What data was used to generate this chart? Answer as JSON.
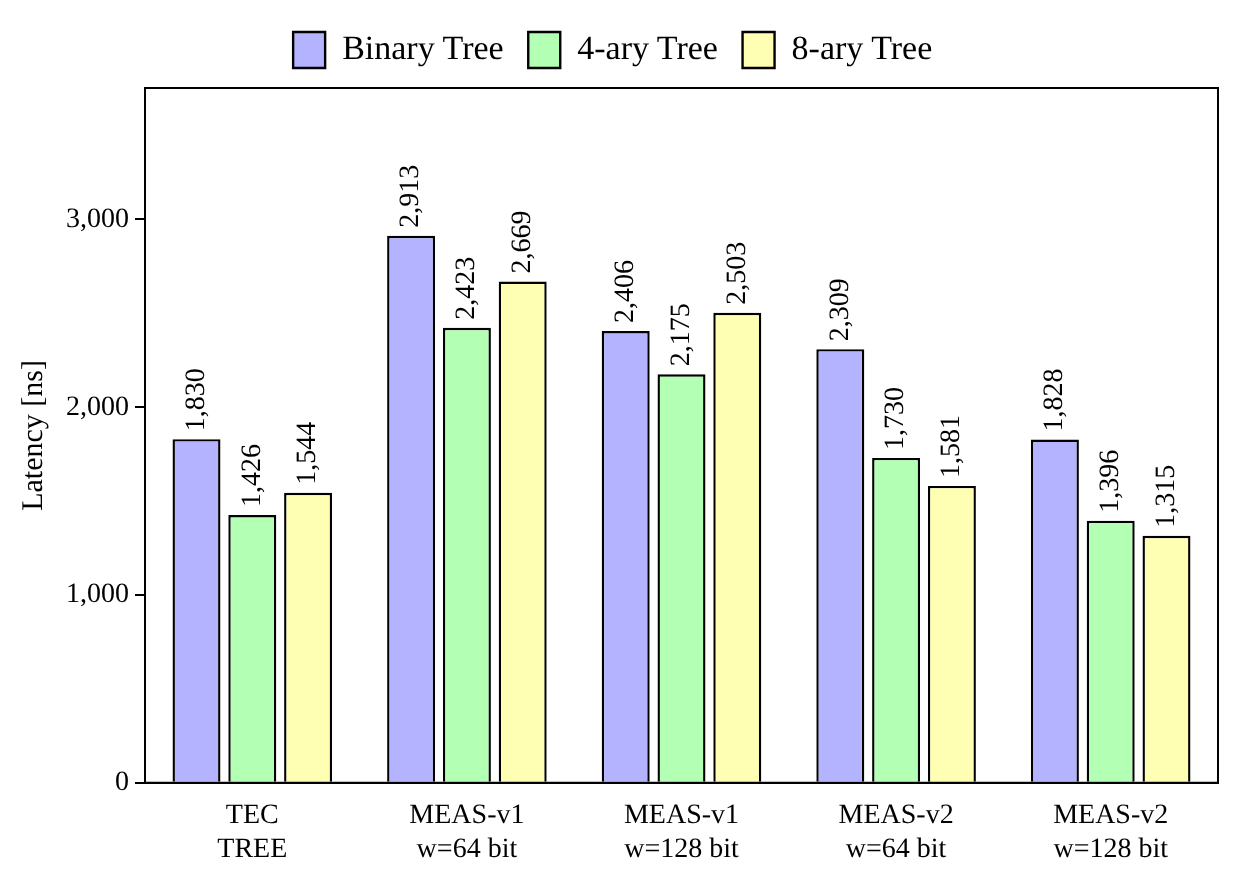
{
  "chart_data": {
    "type": "bar",
    "ylabel": "Latency [ns]",
    "categories": [
      "TEC\nTREE",
      "MEAS-v1\nw=64 bit",
      "MEAS-v1\nw=128 bit",
      "MEAS-v2\nw=64 bit",
      "MEAS-v2\nw=128 bit"
    ],
    "series": [
      {
        "name": "Binary Tree",
        "color": "#b3b3ff",
        "values": [
          1830,
          2913,
          2406,
          2309,
          1828
        ],
        "value_labels": [
          "1,830",
          "2,913",
          "2,406",
          "2,309",
          "1,828"
        ]
      },
      {
        "name": "4-ary Tree",
        "color": "#b3ffb3",
        "values": [
          1426,
          2423,
          2175,
          1730,
          1396
        ],
        "value_labels": [
          "1,426",
          "2,423",
          "2,175",
          "1,730",
          "1,396"
        ]
      },
      {
        "name": "8-ary Tree",
        "color": "#ffffb3",
        "values": [
          1544,
          2669,
          2503,
          1581,
          1315
        ],
        "value_labels": [
          "1,544",
          "2,669",
          "2,503",
          "1,581",
          "1,315"
        ]
      }
    ],
    "ylim": [
      0,
      3700
    ],
    "yticks": [
      0,
      {
        "value": 1000,
        "label": "1,000"
      },
      {
        "value": 2000,
        "label": "2,000"
      },
      {
        "value": 3000,
        "label": "3,000"
      }
    ],
    "grid": false,
    "legend": "top"
  }
}
